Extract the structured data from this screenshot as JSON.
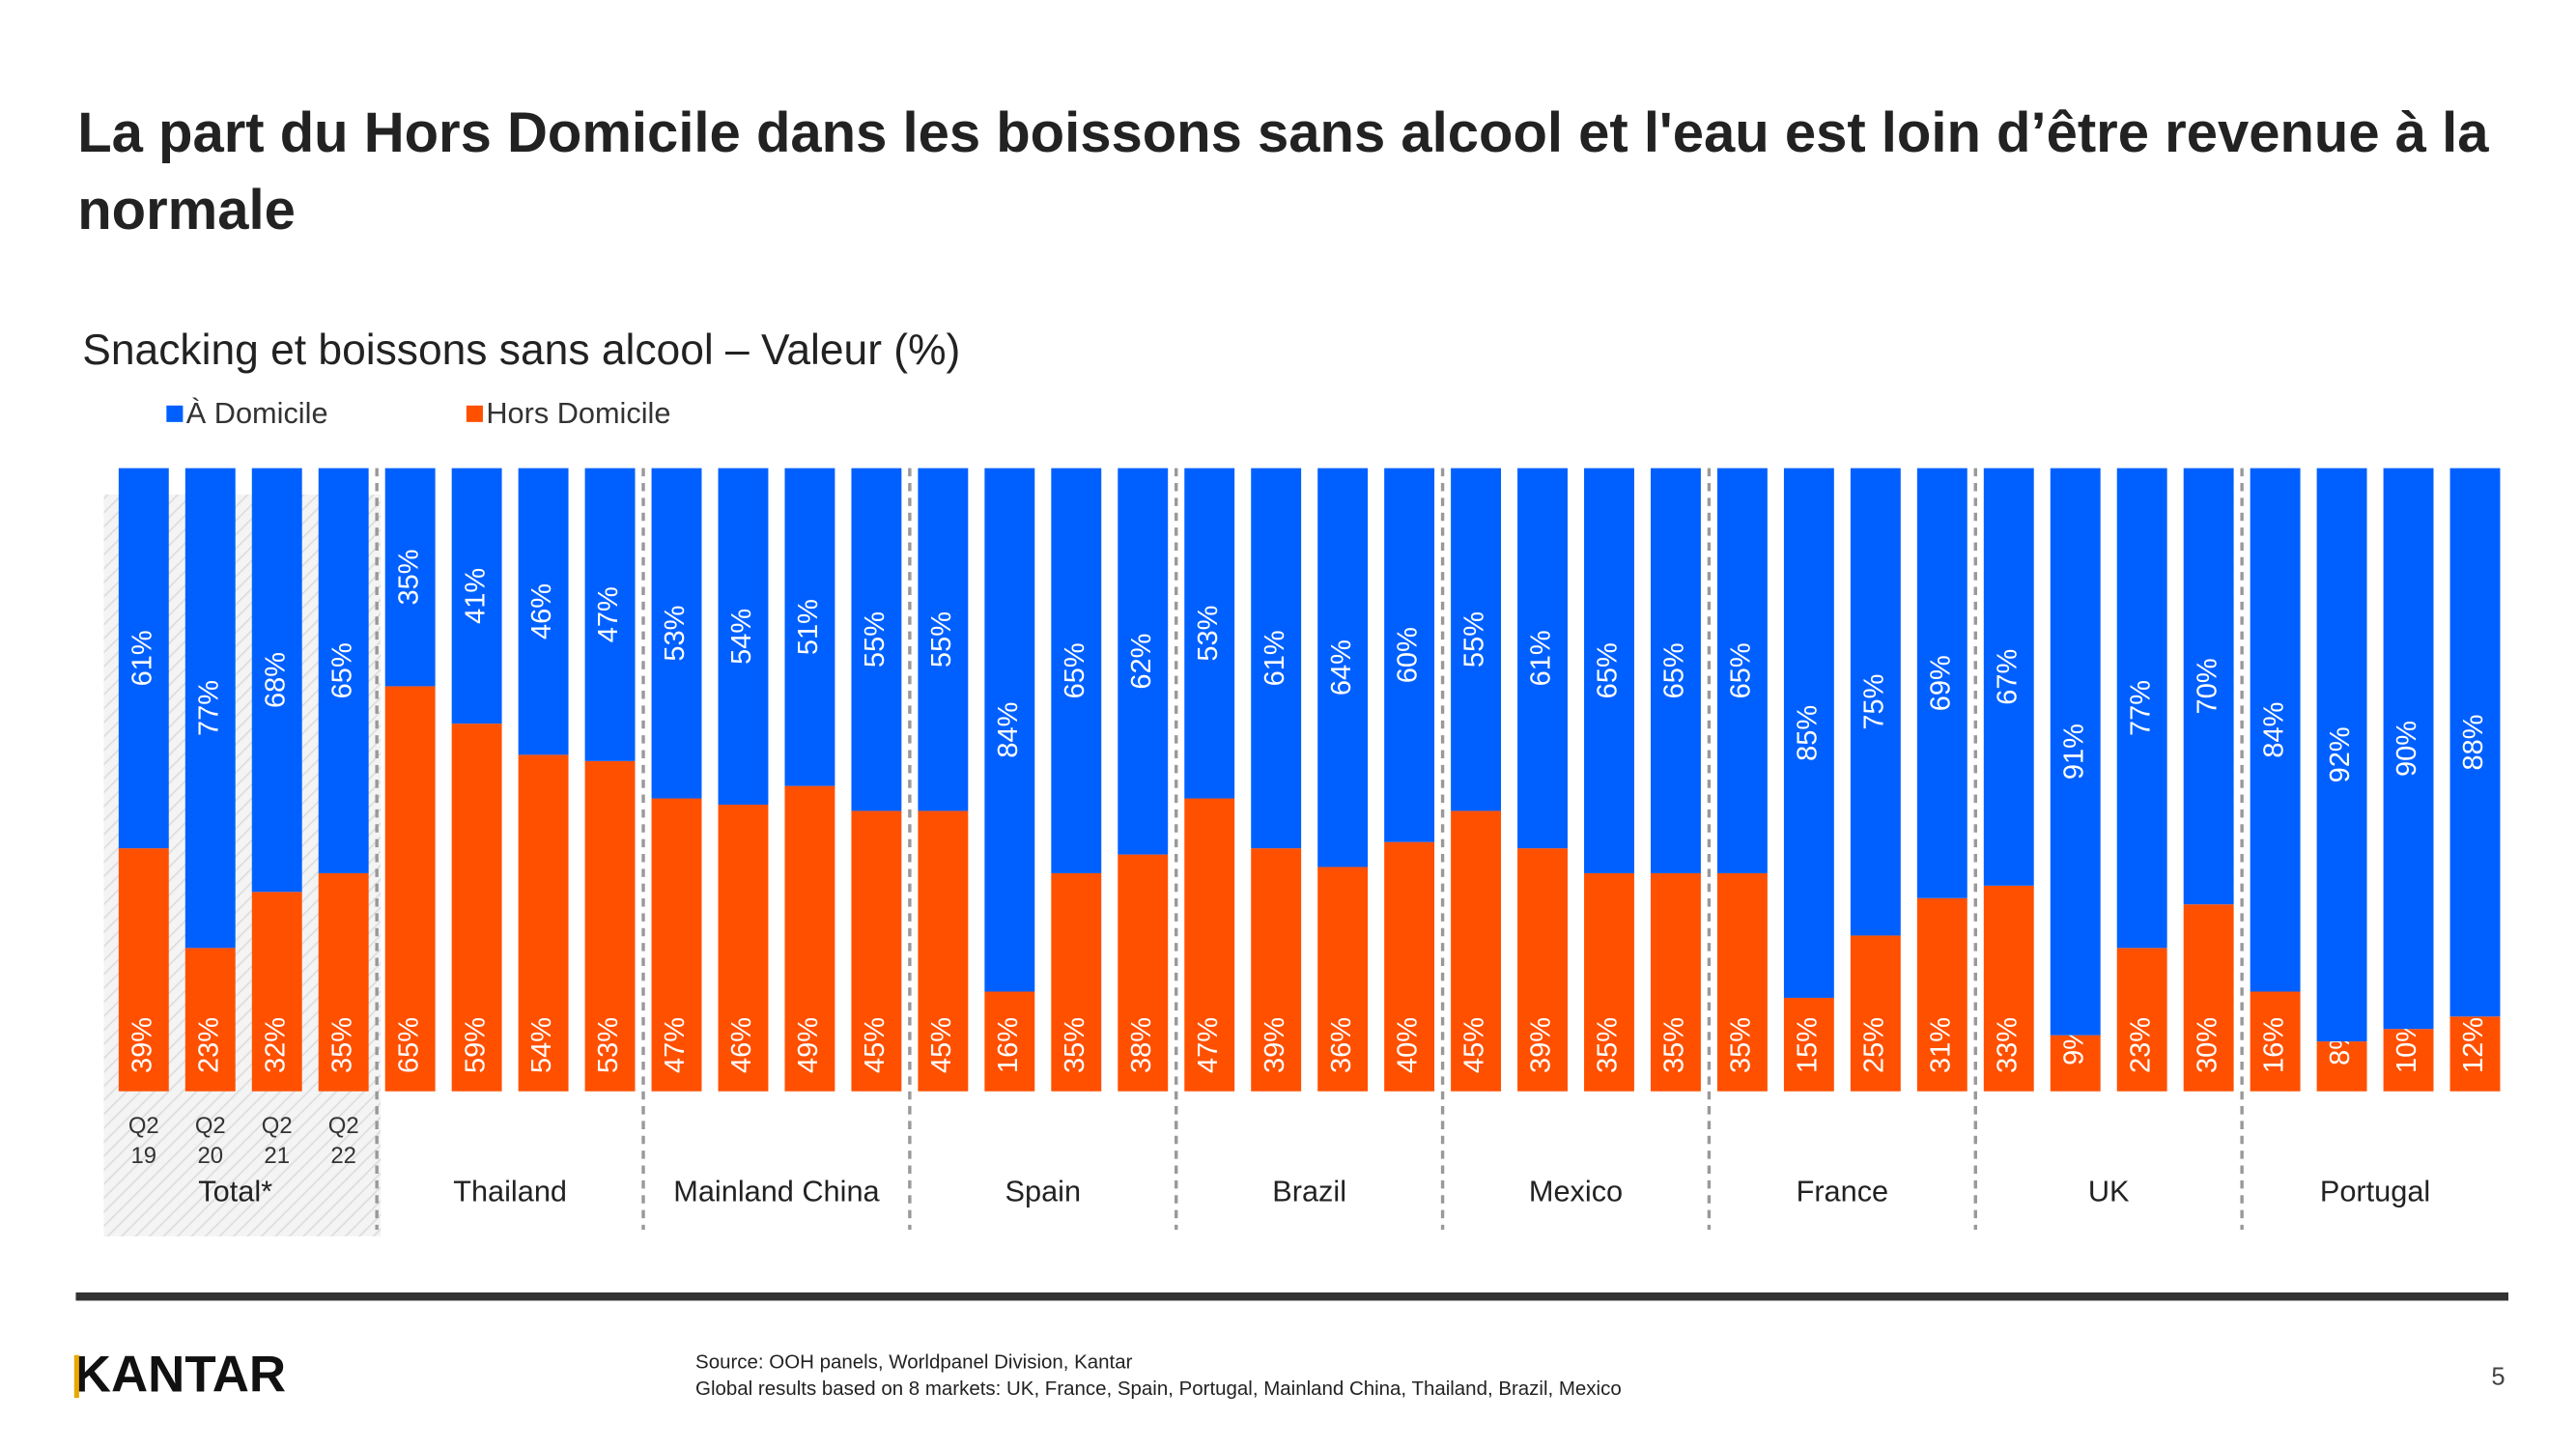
{
  "chart_data": {
    "type": "stacked-bar",
    "title": "La part du Hors Domicile dans les boissons sans alcool et l'eau est loin d’être revenue à la normale",
    "subtitle": "Snacking et boissons sans alcool – Valeur (%)",
    "categories": [
      "Q2 19",
      "Q2 20",
      "Q2 21",
      "Q2 22",
      null,
      null,
      null,
      null,
      null,
      null,
      null,
      null,
      null,
      null,
      null,
      null,
      null,
      null,
      null,
      null,
      null,
      null,
      null,
      null,
      null,
      null,
      null,
      null,
      null,
      null,
      null,
      null,
      null,
      null,
      null,
      null
    ],
    "groups": [
      "Total*",
      "Thailand",
      "Mainland China",
      "Spain",
      "Brazil",
      "Mexico",
      "France",
      "UK",
      "Portugal"
    ],
    "ylim": [
      0,
      100
    ],
    "series": [
      {
        "name": "Hors Domicile",
        "color": "#ff5000",
        "values": [
          39,
          23,
          32,
          35,
          65,
          59,
          54,
          53,
          47,
          46,
          49,
          45,
          45,
          16,
          35,
          38,
          47,
          39,
          36,
          40,
          45,
          39,
          35,
          35,
          35,
          15,
          25,
          31,
          33,
          9,
          23,
          30,
          16,
          8,
          10,
          12
        ],
        "value_labels": [
          "39%",
          "23%",
          "32%",
          "35%",
          "65%",
          "59%",
          "54%",
          "53%",
          "47%",
          "46%",
          "49%",
          "45%",
          "45%",
          "16%",
          "35%",
          "38%",
          "47%",
          "39%",
          "36%",
          "40%",
          "45%",
          "39%",
          "35%",
          "35%",
          "35%",
          "15%",
          "25%",
          "31%",
          "33%",
          "9%",
          "23%",
          "30%",
          "16%",
          "8%",
          "10%",
          "12%"
        ]
      },
      {
        "name": "À  Domicile",
        "color": "#0060ff",
        "values": [
          61,
          77,
          68,
          65,
          35,
          41,
          46,
          47,
          53,
          54,
          51,
          55,
          55,
          84,
          65,
          62,
          53,
          61,
          64,
          60,
          55,
          61,
          65,
          65,
          65,
          85,
          75,
          69,
          67,
          91,
          77,
          70,
          84,
          92,
          90,
          88
        ],
        "value_labels": [
          "61%",
          "77%",
          "68%",
          "65%",
          "35%",
          "41%",
          "46%",
          "47%",
          "53%",
          "54%",
          "51%",
          "55%",
          "55%",
          "84%",
          "65%",
          "62%",
          "53%",
          "61%",
          "64%",
          "60%",
          "55%",
          "61%",
          "65%",
          "65%",
          "65%",
          "85%",
          "75%",
          "69%",
          "67%",
          "91%",
          "77%",
          "70%",
          "84%",
          "92%",
          "90%",
          "88%"
        ]
      }
    ]
  },
  "footer": {
    "logo": "KANTAR",
    "notes": [
      "Source: OOH panels, Worldpanel Division, Kantar",
      "Global results based on 8 markets: UK, France, Spain, Portugal, Mainland China, Thailand, Brazil, Mexico"
    ],
    "page": "5"
  }
}
